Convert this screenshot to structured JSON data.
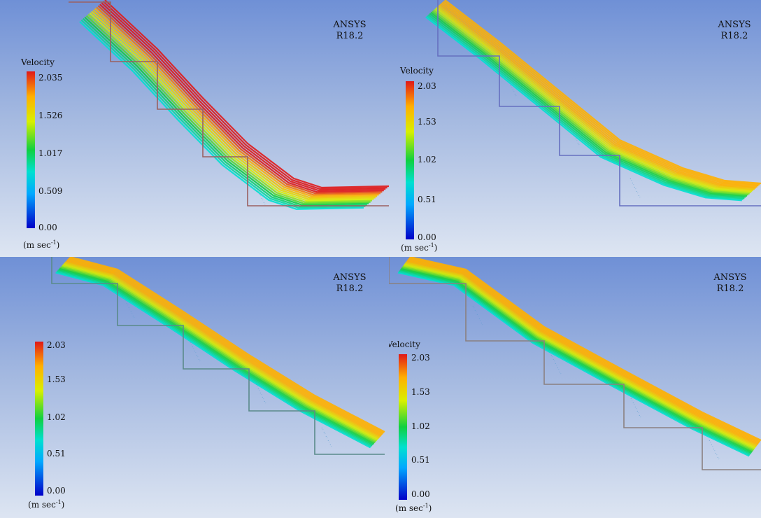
{
  "panels": [
    {
      "brand": [
        "ANSYS",
        "R18.2"
      ],
      "legend": {
        "title": "Velocity",
        "ticks": [
          "2.035",
          "1.526",
          "1.017",
          "0.509",
          "0.00"
        ],
        "unit": "m sec",
        "exp": "-1"
      }
    },
    {
      "brand": [
        "ANSYS",
        "R18.2"
      ],
      "legend": {
        "title": "Velocity",
        "ticks": [
          "2.03",
          "1.53",
          "1.02",
          "0.51",
          "0.00"
        ],
        "unit": "m sec",
        "exp": "-1"
      }
    },
    {
      "brand": [
        "ANSYS",
        "R18.2"
      ],
      "legend": {
        "title": "",
        "ticks": [
          "2.03",
          "1.53",
          "1.02",
          "0.51",
          "0.00"
        ],
        "unit": "m sec",
        "exp": "-1"
      }
    },
    {
      "brand": [
        "ANSYS",
        "R18.2"
      ],
      "legend": {
        "title": "Velocity",
        "ticks": [
          "2.03",
          "1.53",
          "1.02",
          "0.51",
          "0.00"
        ],
        "unit": "m sec",
        "exp": "-1"
      }
    }
  ],
  "colormap": {
    "low": "#0000c8",
    "cyan": "#00e0d0",
    "green": "#10d040",
    "yellow": "#d8f000",
    "orange": "#ffb000",
    "high": "#e01818"
  }
}
